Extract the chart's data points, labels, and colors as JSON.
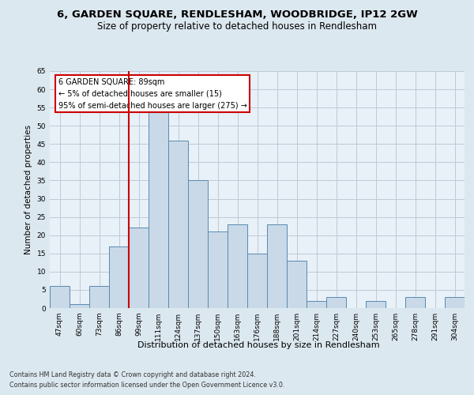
{
  "title_line1": "6, GARDEN SQUARE, RENDLESHAM, WOODBRIDGE, IP12 2GW",
  "title_line2": "Size of property relative to detached houses in Rendlesham",
  "xlabel": "Distribution of detached houses by size in Rendlesham",
  "ylabel": "Number of detached properties",
  "footer_line1": "Contains HM Land Registry data © Crown copyright and database right 2024.",
  "footer_line2": "Contains public sector information licensed under the Open Government Licence v3.0.",
  "bins": [
    "47sqm",
    "60sqm",
    "73sqm",
    "86sqm",
    "99sqm",
    "111sqm",
    "124sqm",
    "137sqm",
    "150sqm",
    "163sqm",
    "176sqm",
    "188sqm",
    "201sqm",
    "214sqm",
    "227sqm",
    "240sqm",
    "253sqm",
    "265sqm",
    "278sqm",
    "291sqm",
    "304sqm"
  ],
  "values": [
    6,
    1,
    6,
    17,
    22,
    54,
    46,
    35,
    21,
    23,
    15,
    23,
    13,
    2,
    3,
    0,
    2,
    0,
    3,
    0,
    3
  ],
  "bar_color": "#c9d9e8",
  "bar_edge_color": "#5a8ab0",
  "red_line_bin_idx": 3,
  "red_line_color": "#cc0000",
  "annotation_text": "6 GARDEN SQUARE: 89sqm\n← 5% of detached houses are smaller (15)\n95% of semi-detached houses are larger (275) →",
  "annotation_box_color": "#ffffff",
  "annotation_box_edge": "#cc0000",
  "ylim": [
    0,
    65
  ],
  "yticks": [
    0,
    5,
    10,
    15,
    20,
    25,
    30,
    35,
    40,
    45,
    50,
    55,
    60,
    65
  ],
  "grid_color": "#c0c8d8",
  "background_color": "#dce8f0",
  "plot_bg_color": "#e8f0f8",
  "title_fontsize": 9.5,
  "subtitle_fontsize": 8.5,
  "ylabel_fontsize": 7.5,
  "tick_fontsize": 6.5,
  "xlabel_fontsize": 8,
  "annotation_fontsize": 7,
  "footer_fontsize": 5.8
}
